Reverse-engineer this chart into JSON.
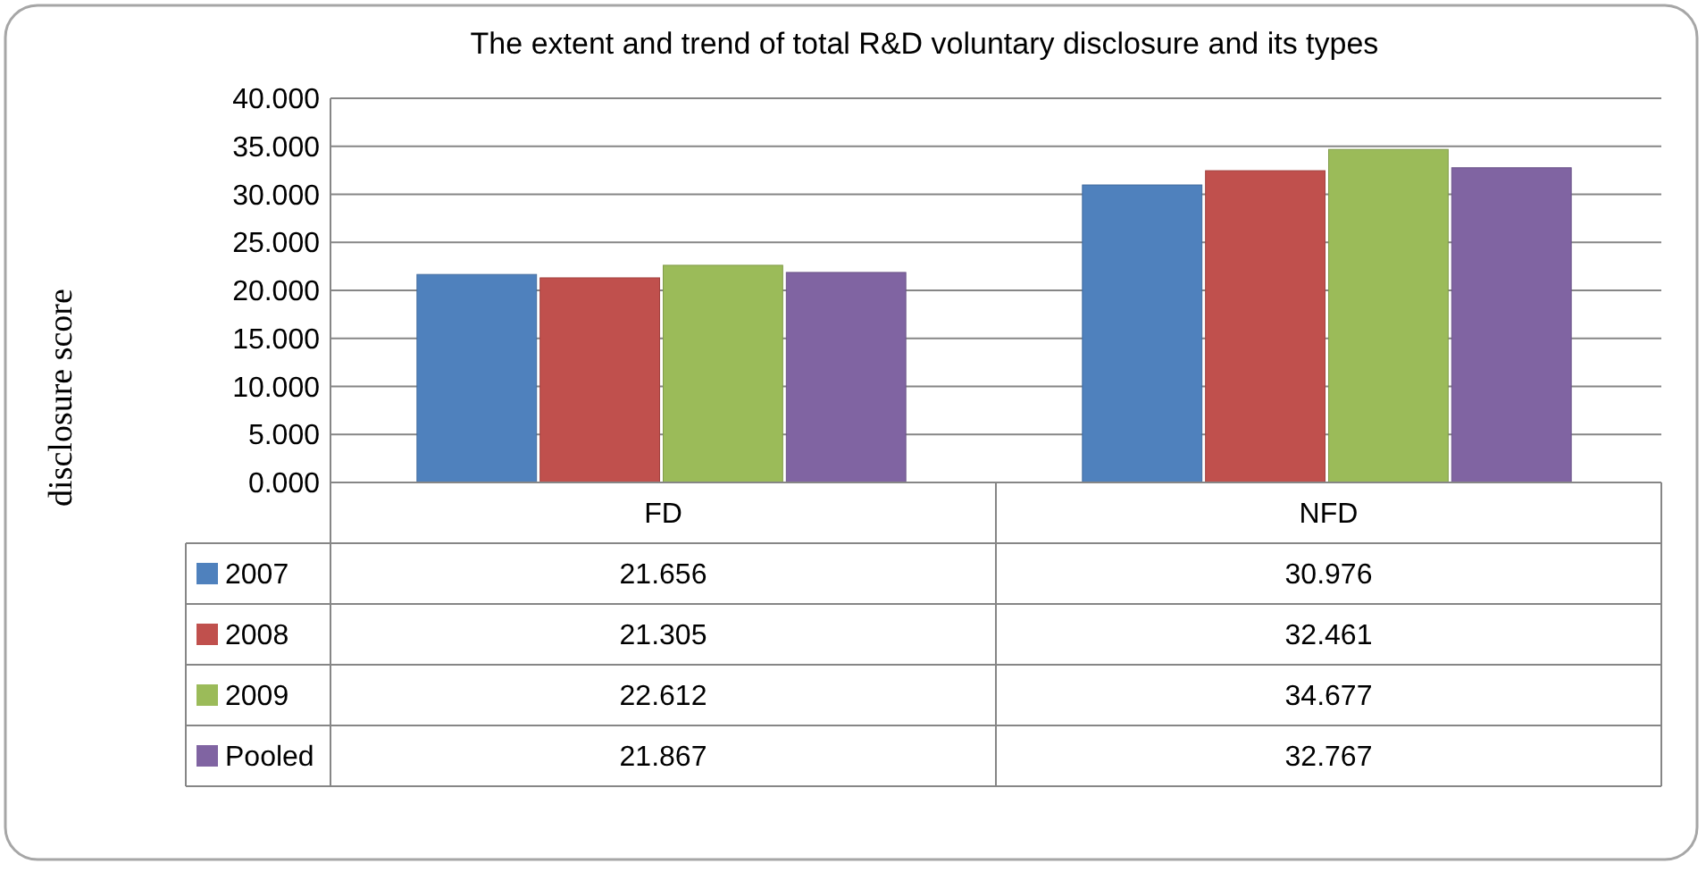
{
  "chart_data": {
    "type": "bar",
    "title": "The extent and trend of total R&D voluntary disclosure and its types",
    "ylabel": "disclosure score",
    "categories": [
      "FD",
      "NFD"
    ],
    "series": [
      {
        "name": "2007",
        "color": "#4f81bd",
        "values": [
          21.656,
          30.976
        ]
      },
      {
        "name": "2008",
        "color": "#c0504d",
        "values": [
          21.305,
          32.461
        ]
      },
      {
        "name": "2009",
        "color": "#9bbb59",
        "values": [
          22.612,
          34.677
        ]
      },
      {
        "name": "Pooled",
        "color": "#8064a2",
        "values": [
          21.867,
          32.767
        ]
      }
    ],
    "ylim": [
      0,
      40
    ],
    "yticks": [
      {
        "value": 0,
        "label": "0.000"
      },
      {
        "value": 5,
        "label": "5.000"
      },
      {
        "value": 10,
        "label": "10.000"
      },
      {
        "value": 15,
        "label": "15.000"
      },
      {
        "value": 20,
        "label": "20.000"
      },
      {
        "value": 25,
        "label": "25.000"
      },
      {
        "value": 30,
        "label": "30.000"
      },
      {
        "value": 35,
        "label": "35.000"
      },
      {
        "value": 40,
        "label": "40.000"
      }
    ],
    "grid": "y",
    "legend": "bottom",
    "data_labels": true
  }
}
